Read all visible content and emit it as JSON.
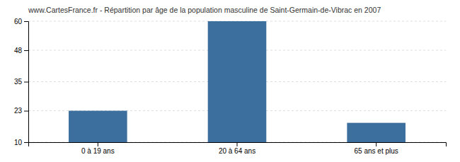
{
  "chart_data": {
    "type": "bar",
    "title": "www.CartesFrance.fr - Répartition par âge de la population masculine de Saint-Germain-de-Vibrac en 2007",
    "categories": [
      "0 à 19 ans",
      "20 à 64 ans",
      "65 ans et plus"
    ],
    "values": [
      23,
      60,
      18
    ],
    "color": "#3d6f9e",
    "ylim": [
      10,
      60
    ],
    "yticks": [
      10,
      23,
      35,
      48,
      60
    ],
    "grid": true
  }
}
